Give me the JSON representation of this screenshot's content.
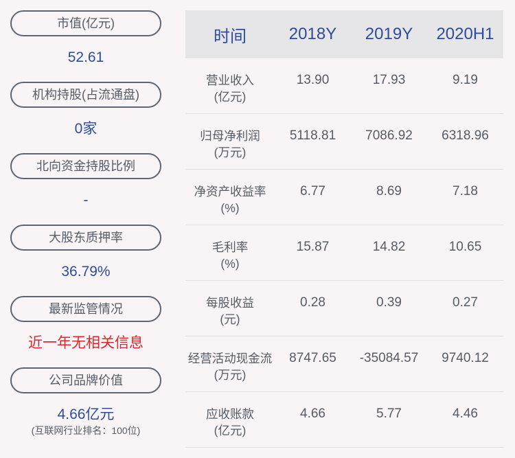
{
  "left_panel": [
    {
      "label": "市值(亿元)",
      "value": "52.61",
      "value_color": "#2e4c9c"
    },
    {
      "label": "机构持股(占流通盘)",
      "value": "0家",
      "value_color": "#2e4c9c"
    },
    {
      "label": "北向资金持股比例",
      "value": "-",
      "value_color": "#2e4c9c"
    },
    {
      "label": "大股东质押率",
      "value": "36.79%",
      "value_color": "#2e4c9c"
    },
    {
      "label": "最新监管情况",
      "value": "近一年无相关信息",
      "value_color": "#e0252b"
    },
    {
      "label": "公司品牌价值",
      "value": "4.66亿元",
      "value_color": "#2e4c9c",
      "note": "(互联网行业排名：100位)"
    }
  ],
  "table": {
    "headers": [
      "时间",
      "2018Y",
      "2019Y",
      "2020H1"
    ],
    "rows": [
      {
        "label": "营业收入",
        "unit": "(亿元)",
        "values": [
          "13.90",
          "17.93",
          "9.19"
        ]
      },
      {
        "label": "归母净利润",
        "unit": "(万元)",
        "values": [
          "5118.81",
          "7086.92",
          "6318.96"
        ]
      },
      {
        "label": "净资产收益率",
        "unit": "(%)",
        "values": [
          "6.77",
          "8.69",
          "7.18"
        ]
      },
      {
        "label": "毛利率",
        "unit": "(%)",
        "values": [
          "15.87",
          "14.82",
          "10.65"
        ]
      },
      {
        "label": "每股收益",
        "unit": "(元)",
        "values": [
          "0.28",
          "0.39",
          "0.27"
        ]
      },
      {
        "label": "经营活动现金流",
        "unit": "(万元)",
        "values": [
          "8747.65",
          "-35084.57",
          "9740.12"
        ]
      },
      {
        "label": "应收账款",
        "unit": "(亿元)",
        "values": [
          "4.66",
          "5.77",
          "4.46"
        ]
      }
    ]
  }
}
